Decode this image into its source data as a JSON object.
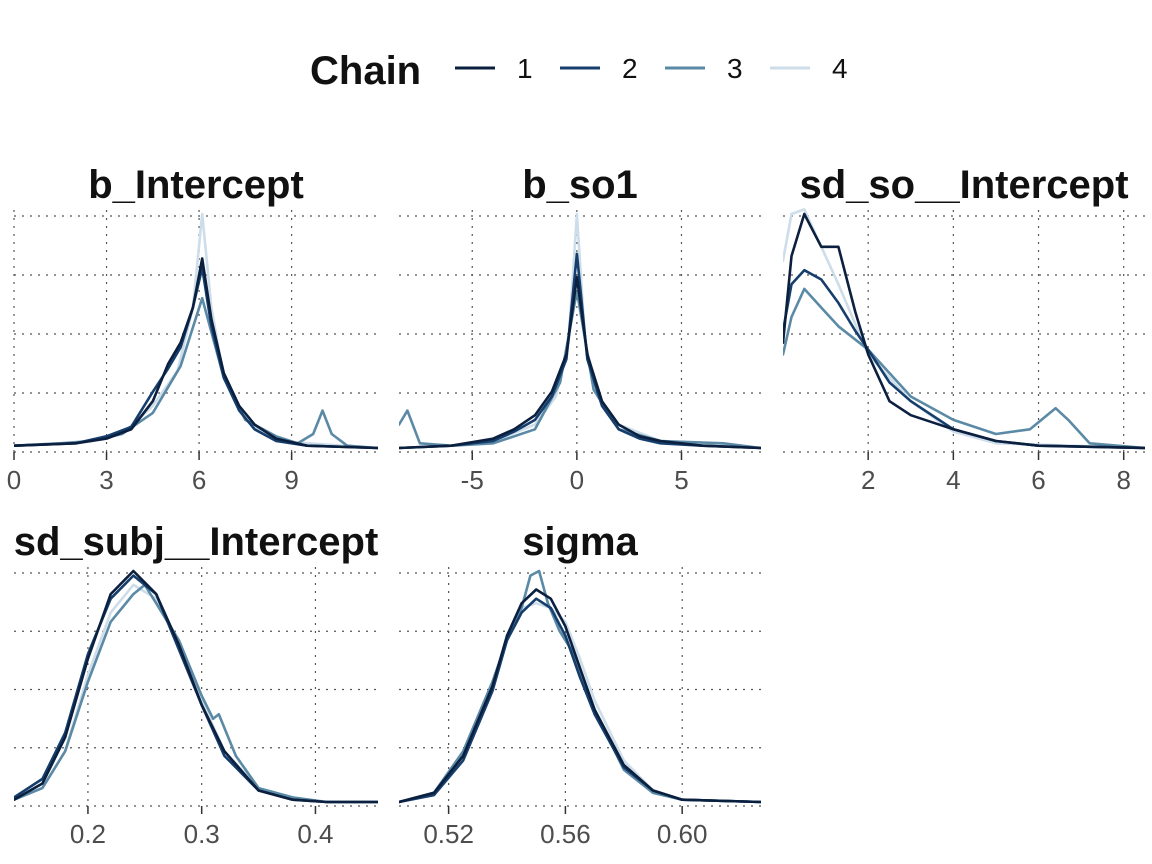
{
  "legend": {
    "title": "Chain",
    "position": "top",
    "entries": [
      {
        "label": "1",
        "color": "#0b1f3f"
      },
      {
        "label": "2",
        "color": "#153e6c"
      },
      {
        "label": "3",
        "color": "#5b8aa6"
      },
      {
        "label": "4",
        "color": "#cddde9"
      }
    ]
  },
  "chart_data": [
    {
      "type": "area",
      "title": "b_Intercept",
      "xlim": [
        0,
        11.8
      ],
      "xticks": [
        0,
        3,
        6,
        9
      ],
      "xtick_labels": [
        "0",
        "3",
        "6",
        "9"
      ],
      "grid": true,
      "series": [
        {
          "name": "1",
          "x": [
            0,
            2,
            3,
            3.8,
            4.5,
            5,
            5.4,
            5.8,
            6.1,
            6.4,
            6.8,
            7.3,
            7.8,
            8.5,
            9.5,
            11.8
          ],
          "y": [
            0.01,
            0.02,
            0.04,
            0.08,
            0.2,
            0.36,
            0.45,
            0.6,
            0.81,
            0.55,
            0.32,
            0.18,
            0.1,
            0.04,
            0.01,
            0
          ]
        },
        {
          "name": "2",
          "x": [
            0,
            2,
            3,
            3.8,
            4.5,
            5,
            5.4,
            5.8,
            6.1,
            6.4,
            6.8,
            7.3,
            7.8,
            8.5,
            9.5,
            11.8
          ],
          "y": [
            0.01,
            0.02,
            0.05,
            0.09,
            0.24,
            0.34,
            0.43,
            0.6,
            0.77,
            0.52,
            0.3,
            0.16,
            0.08,
            0.03,
            0.01,
            0
          ]
        },
        {
          "name": "3",
          "x": [
            0,
            1.5,
            2.5,
            3.5,
            4.5,
            5.4,
            6.1,
            6.8,
            7.5,
            8.5,
            9.2,
            9.7,
            10.0,
            10.3,
            10.8,
            11.8
          ],
          "y": [
            0.01,
            0.02,
            0.03,
            0.06,
            0.15,
            0.35,
            0.64,
            0.3,
            0.12,
            0.05,
            0.02,
            0.06,
            0.16,
            0.06,
            0.01,
            0
          ]
        },
        {
          "name": "4",
          "x": [
            0,
            2,
            3.5,
            4.5,
            5.3,
            5.8,
            6.1,
            6.4,
            6.8,
            7.5,
            8.5,
            11.8
          ],
          "y": [
            0.01,
            0.02,
            0.06,
            0.18,
            0.33,
            0.6,
            1.0,
            0.6,
            0.3,
            0.12,
            0.03,
            0
          ]
        }
      ]
    },
    {
      "type": "area",
      "title": "b_so1",
      "xlim": [
        -8.5,
        8.8
      ],
      "xticks": [
        -5,
        0,
        5
      ],
      "xtick_labels": [
        "-5",
        "0",
        "5"
      ],
      "grid": true,
      "series": [
        {
          "name": "1",
          "x": [
            -8.5,
            -6,
            -4,
            -3,
            -2,
            -1.2,
            -0.5,
            0,
            0.5,
            1.2,
            2,
            3,
            4,
            6,
            8.8
          ],
          "y": [
            0,
            0.01,
            0.04,
            0.08,
            0.14,
            0.24,
            0.4,
            0.73,
            0.4,
            0.2,
            0.1,
            0.05,
            0.03,
            0.01,
            0
          ]
        },
        {
          "name": "2",
          "x": [
            -8.5,
            -6,
            -4,
            -3,
            -2,
            -1.2,
            -0.5,
            0,
            0.5,
            1.2,
            2,
            3,
            4,
            6,
            8.8
          ],
          "y": [
            0,
            0.01,
            0.03,
            0.07,
            0.12,
            0.22,
            0.38,
            0.83,
            0.38,
            0.18,
            0.08,
            0.04,
            0.02,
            0.01,
            0
          ]
        },
        {
          "name": "3",
          "x": [
            -8.5,
            -8.1,
            -7.5,
            -6,
            -4,
            -2,
            -0.8,
            0,
            0.8,
            2,
            4,
            7,
            8.8
          ],
          "y": [
            0.1,
            0.16,
            0.02,
            0.01,
            0.02,
            0.08,
            0.28,
            0.67,
            0.25,
            0.08,
            0.03,
            0.02,
            0
          ]
        },
        {
          "name": "4",
          "x": [
            -8.5,
            -6,
            -4,
            -2,
            -1,
            -0.4,
            0,
            0.4,
            1,
            2,
            4,
            8.8
          ],
          "y": [
            0,
            0.01,
            0.03,
            0.1,
            0.22,
            0.45,
            1.0,
            0.45,
            0.22,
            0.1,
            0.03,
            0
          ]
        }
      ]
    },
    {
      "type": "area",
      "title": "sd_so__Intercept",
      "xlim": [
        0,
        8.5
      ],
      "xticks": [
        2,
        4,
        6,
        8
      ],
      "xtick_labels": [
        "2",
        "4",
        "6",
        "8"
      ],
      "grid": true,
      "series": [
        {
          "name": "1",
          "x": [
            0,
            0.2,
            0.5,
            0.9,
            1.3,
            1.7,
            2,
            2.5,
            3,
            4,
            5,
            6,
            8.5
          ],
          "y": [
            0.45,
            0.82,
            1.0,
            0.86,
            0.86,
            0.58,
            0.4,
            0.2,
            0.14,
            0.08,
            0.03,
            0.01,
            0
          ]
        },
        {
          "name": "2",
          "x": [
            0,
            0.2,
            0.5,
            0.9,
            1.3,
            1.7,
            2,
            2.5,
            3,
            4,
            5,
            6,
            8.5
          ],
          "y": [
            0.5,
            0.7,
            0.76,
            0.72,
            0.62,
            0.5,
            0.42,
            0.28,
            0.2,
            0.08,
            0.03,
            0.01,
            0
          ]
        },
        {
          "name": "3",
          "x": [
            0,
            0.2,
            0.5,
            0.9,
            1.3,
            2,
            3,
            4,
            5,
            5.8,
            6.2,
            6.4,
            6.7,
            7.2,
            8.5
          ],
          "y": [
            0.4,
            0.56,
            0.68,
            0.6,
            0.52,
            0.42,
            0.22,
            0.12,
            0.06,
            0.08,
            0.14,
            0.17,
            0.12,
            0.02,
            0
          ]
        },
        {
          "name": "4",
          "x": [
            0,
            0.2,
            0.5,
            0.9,
            1.3,
            2,
            3,
            4,
            5,
            8.5
          ],
          "y": [
            0.8,
            1.0,
            1.02,
            0.86,
            0.7,
            0.4,
            0.2,
            0.07,
            0.02,
            0
          ]
        }
      ]
    },
    {
      "type": "area",
      "title": "sd_subj__Intercept",
      "xlim": [
        0.135,
        0.455
      ],
      "xticks": [
        0.2,
        0.3,
        0.4
      ],
      "xtick_labels": [
        "0.2",
        "0.3",
        "0.4"
      ],
      "grid": true,
      "series": [
        {
          "name": "1",
          "x": [
            0.135,
            0.16,
            0.18,
            0.2,
            0.22,
            0.24,
            0.26,
            0.28,
            0.3,
            0.32,
            0.35,
            0.38,
            0.41,
            0.455
          ],
          "y": [
            0.01,
            0.08,
            0.28,
            0.62,
            0.9,
            1.0,
            0.9,
            0.68,
            0.42,
            0.22,
            0.05,
            0.01,
            0,
            0
          ]
        },
        {
          "name": "2",
          "x": [
            0.135,
            0.16,
            0.18,
            0.2,
            0.22,
            0.24,
            0.26,
            0.28,
            0.3,
            0.32,
            0.35,
            0.38,
            0.41,
            0.455
          ],
          "y": [
            0.02,
            0.1,
            0.3,
            0.64,
            0.88,
            0.98,
            0.9,
            0.66,
            0.42,
            0.2,
            0.05,
            0.01,
            0,
            0
          ]
        },
        {
          "name": "3",
          "x": [
            0.135,
            0.16,
            0.18,
            0.2,
            0.22,
            0.24,
            0.25,
            0.26,
            0.28,
            0.3,
            0.31,
            0.315,
            0.33,
            0.35,
            0.38,
            0.41,
            0.455
          ],
          "y": [
            0.01,
            0.06,
            0.22,
            0.52,
            0.78,
            0.9,
            0.94,
            0.86,
            0.7,
            0.46,
            0.36,
            0.38,
            0.2,
            0.06,
            0.02,
            0,
            0
          ]
        },
        {
          "name": "4",
          "x": [
            0.135,
            0.16,
            0.18,
            0.2,
            0.22,
            0.24,
            0.26,
            0.28,
            0.3,
            0.32,
            0.35,
            0.38,
            0.41,
            0.455
          ],
          "y": [
            0.01,
            0.06,
            0.22,
            0.55,
            0.82,
            0.94,
            0.88,
            0.68,
            0.44,
            0.22,
            0.06,
            0.01,
            0,
            0
          ]
        }
      ]
    },
    {
      "type": "area",
      "title": "sigma",
      "xlim": [
        0.503,
        0.627
      ],
      "xticks": [
        0.52,
        0.56,
        0.6
      ],
      "xtick_labels": [
        "0.52",
        "0.56",
        "0.60"
      ],
      "grid": true,
      "series": [
        {
          "name": "1",
          "x": [
            0.503,
            0.515,
            0.525,
            0.535,
            0.54,
            0.545,
            0.55,
            0.555,
            0.56,
            0.565,
            0.57,
            0.58,
            0.59,
            0.6,
            0.627
          ],
          "y": [
            0,
            0.04,
            0.2,
            0.5,
            0.72,
            0.86,
            0.92,
            0.88,
            0.76,
            0.58,
            0.4,
            0.16,
            0.05,
            0.01,
            0
          ]
        },
        {
          "name": "2",
          "x": [
            0.503,
            0.515,
            0.525,
            0.535,
            0.54,
            0.545,
            0.55,
            0.555,
            0.56,
            0.565,
            0.57,
            0.58,
            0.59,
            0.6,
            0.627
          ],
          "y": [
            0,
            0.03,
            0.18,
            0.48,
            0.7,
            0.82,
            0.88,
            0.84,
            0.72,
            0.54,
            0.38,
            0.15,
            0.05,
            0.01,
            0
          ]
        },
        {
          "name": "3",
          "x": [
            0.503,
            0.515,
            0.525,
            0.535,
            0.54,
            0.545,
            0.548,
            0.551,
            0.554,
            0.558,
            0.562,
            0.57,
            0.58,
            0.59,
            0.6,
            0.627
          ],
          "y": [
            0,
            0.04,
            0.22,
            0.52,
            0.7,
            0.84,
            0.98,
            1.0,
            0.86,
            0.74,
            0.66,
            0.4,
            0.14,
            0.04,
            0.01,
            0
          ]
        },
        {
          "name": "4",
          "x": [
            0.503,
            0.515,
            0.525,
            0.535,
            0.54,
            0.545,
            0.55,
            0.555,
            0.56,
            0.565,
            0.57,
            0.58,
            0.59,
            0.6,
            0.627
          ],
          "y": [
            0,
            0.04,
            0.2,
            0.5,
            0.7,
            0.84,
            0.86,
            0.84,
            0.78,
            0.62,
            0.44,
            0.18,
            0.05,
            0.01,
            0
          ]
        }
      ]
    }
  ]
}
